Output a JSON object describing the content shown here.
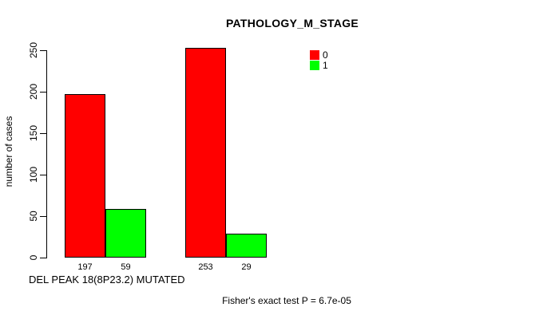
{
  "chart_data": {
    "type": "bar",
    "title": "PATHOLOGY_M_STAGE",
    "ylabel": "number of cases",
    "xlabel": "DEL PEAK 18(8P23.2) MUTATED",
    "annotation": "Fisher's exact test P = 6.7e-05",
    "ylim": [
      0,
      250
    ],
    "yticks": [
      0,
      50,
      100,
      150,
      200,
      250
    ],
    "grid": false,
    "legend_position": "top-right",
    "legend": [
      {
        "label": "0",
        "color": "#ff0000"
      },
      {
        "label": "1",
        "color": "#00ff00"
      }
    ],
    "series": [
      {
        "name": "0",
        "color": "#ff0000",
        "values": [
          197,
          253
        ]
      },
      {
        "name": "1",
        "color": "#00ff00",
        "values": [
          59,
          29
        ]
      }
    ],
    "bar_value_labels": [
      "197",
      "59",
      "253",
      "29"
    ]
  },
  "colors": {
    "background": "#ffffff",
    "axis": "#000000",
    "series_0": "#ff0000",
    "series_1": "#00ff00"
  }
}
